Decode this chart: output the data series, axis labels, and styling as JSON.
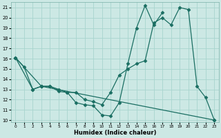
{
  "xlabel": "Humidex (Indice chaleur)",
  "bg_color": "#cce8e4",
  "grid_color": "#a8d4ce",
  "line_color": "#1a6e62",
  "xlim": [
    -0.5,
    23.5
  ],
  "ylim": [
    9.8,
    21.5
  ],
  "xticks": [
    0,
    1,
    2,
    3,
    4,
    5,
    6,
    7,
    8,
    9,
    10,
    11,
    12,
    13,
    14,
    15,
    16,
    17,
    18,
    19,
    20,
    21,
    22,
    23
  ],
  "yticks": [
    10,
    11,
    12,
    13,
    14,
    15,
    16,
    17,
    18,
    19,
    20,
    21
  ],
  "line1_x": [
    0,
    1,
    2,
    3,
    4,
    5,
    6,
    7,
    8,
    9,
    10,
    11,
    12,
    13,
    14,
    15,
    16,
    17
  ],
  "line1_y": [
    16.1,
    15.2,
    13.0,
    13.3,
    13.3,
    12.8,
    12.7,
    11.7,
    11.5,
    11.4,
    10.5,
    10.4,
    11.7,
    15.5,
    19.0,
    21.2,
    19.3,
    20.5
  ],
  "line2_x": [
    0,
    3,
    23
  ],
  "line2_y": [
    16.1,
    13.3,
    10.0
  ],
  "line3_x": [
    0,
    2,
    3,
    4,
    5,
    6,
    7,
    8,
    9,
    10,
    11,
    12,
    13,
    14,
    15,
    16,
    17,
    18,
    19,
    20,
    21,
    22,
    23
  ],
  "line3_y": [
    16.1,
    13.0,
    13.3,
    13.3,
    13.0,
    12.7,
    12.7,
    12.0,
    11.8,
    11.5,
    12.7,
    14.4,
    15.0,
    15.5,
    15.8,
    19.5,
    20.0,
    19.3,
    21.0,
    20.8,
    13.3,
    12.2,
    10.0
  ],
  "marker": "D",
  "markersize": 2.5
}
